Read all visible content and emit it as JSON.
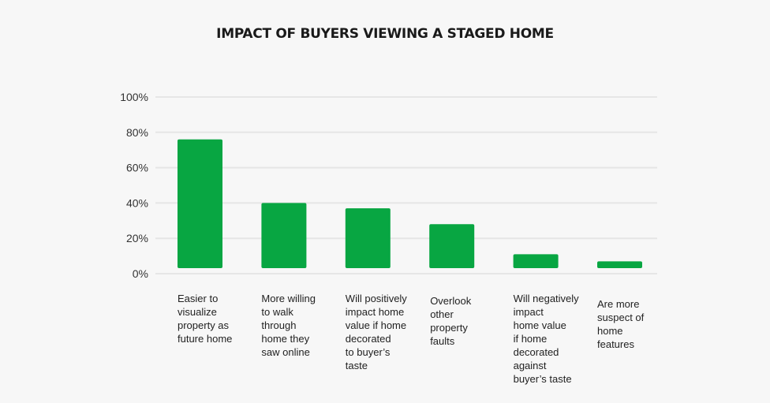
{
  "chart_data": {
    "type": "bar",
    "title": "IMPACT OF BUYERS VIEWING A STAGED HOME",
    "categories": [
      "Easier to visualize property as future home",
      "More willing to walk through home they saw online",
      "Will positively impact home value if home decorated to buyer’s taste",
      "Overlook other property faults",
      "Will negatively impact home value if home decorated against buyer’s taste",
      "Are more suspect of home features"
    ],
    "category_lines": [
      [
        "Easier to",
        "visualize",
        "property as",
        "future home"
      ],
      [
        "More willing",
        "to walk",
        "through",
        "home they",
        "saw online"
      ],
      [
        "Will positively",
        "impact home",
        "value if home",
        "decorated",
        "to buyer’s",
        "taste"
      ],
      [
        "Overlook",
        "other",
        "property",
        "faults"
      ],
      [
        "Will negatively",
        "impact",
        "home value",
        "if home",
        "decorated",
        "against",
        "buyer’s taste"
      ],
      [
        "Are more",
        "suspect of",
        "home",
        "features"
      ]
    ],
    "values": [
      76,
      40,
      37,
      28,
      11,
      7
    ],
    "yticks": [
      "0%",
      "20%",
      "40%",
      "60%",
      "80%",
      "100%"
    ],
    "ylim": [
      0,
      100
    ],
    "xlabel": "",
    "ylabel": "",
    "grid": true,
    "bar_color": "#08a642"
  }
}
